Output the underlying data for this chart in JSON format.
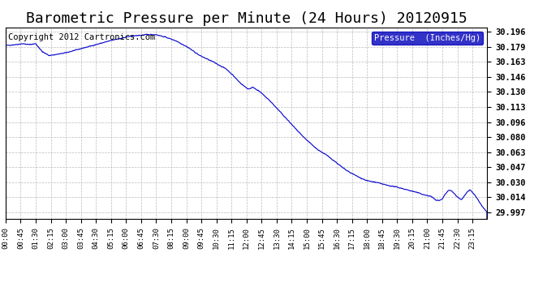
{
  "title": "Barometric Pressure per Minute (24 Hours) 20120915",
  "copyright": "Copyright 2012 Cartronics.com",
  "legend_label": "Pressure  (Inches/Hg)",
  "yticks": [
    29.997,
    30.014,
    30.03,
    30.047,
    30.063,
    30.08,
    30.096,
    30.113,
    30.13,
    30.146,
    30.163,
    30.179,
    30.196
  ],
  "ytick_labels": [
    "29.997",
    "30.014",
    "30.030",
    "30.047",
    "30.063",
    "30.080",
    "30.096",
    "30.113",
    "30.130",
    "30.146",
    "30.163",
    "30.179",
    "30.196"
  ],
  "ylim": [
    29.99,
    30.201
  ],
  "xtick_labels": [
    "00:00",
    "00:45",
    "01:30",
    "02:15",
    "03:00",
    "03:45",
    "04:30",
    "05:15",
    "06:00",
    "06:45",
    "07:30",
    "08:15",
    "09:00",
    "09:45",
    "10:30",
    "11:15",
    "12:00",
    "12:45",
    "13:30",
    "14:15",
    "15:00",
    "15:45",
    "16:30",
    "17:15",
    "18:00",
    "18:45",
    "19:30",
    "20:15",
    "21:00",
    "21:45",
    "22:30",
    "23:15"
  ],
  "line_color": "#0000CC",
  "background_color": "#ffffff",
  "grid_color": "#aaaaaa",
  "title_fontsize": 13,
  "copyright_fontsize": 7.5,
  "legend_bg": "#0000BB",
  "keypoints": [
    [
      0,
      30.181
    ],
    [
      30,
      30.182
    ],
    [
      50,
      30.183
    ],
    [
      70,
      30.182
    ],
    [
      90,
      30.183
    ],
    [
      110,
      30.174
    ],
    [
      130,
      30.17
    ],
    [
      150,
      30.171
    ],
    [
      180,
      30.173
    ],
    [
      220,
      30.177
    ],
    [
      270,
      30.182
    ],
    [
      320,
      30.187
    ],
    [
      370,
      30.191
    ],
    [
      420,
      30.193
    ],
    [
      450,
      30.193
    ],
    [
      460,
      30.192
    ],
    [
      480,
      30.19
    ],
    [
      510,
      30.186
    ],
    [
      545,
      30.179
    ],
    [
      580,
      30.17
    ],
    [
      620,
      30.163
    ],
    [
      660,
      30.155
    ],
    [
      680,
      30.148
    ],
    [
      695,
      30.142
    ],
    [
      710,
      30.137
    ],
    [
      725,
      30.133
    ],
    [
      740,
      30.135
    ],
    [
      760,
      30.13
    ],
    [
      790,
      30.12
    ],
    [
      820,
      30.108
    ],
    [
      850,
      30.096
    ],
    [
      890,
      30.08
    ],
    [
      930,
      30.067
    ],
    [
      960,
      30.06
    ],
    [
      985,
      30.053
    ],
    [
      1005,
      30.047
    ],
    [
      1020,
      30.043
    ],
    [
      1035,
      30.04
    ],
    [
      1055,
      30.036
    ],
    [
      1080,
      30.032
    ],
    [
      1110,
      30.03
    ],
    [
      1140,
      30.027
    ],
    [
      1170,
      30.025
    ],
    [
      1200,
      30.022
    ],
    [
      1230,
      30.019
    ],
    [
      1255,
      30.016
    ],
    [
      1270,
      30.015
    ],
    [
      1285,
      30.011
    ],
    [
      1295,
      30.01
    ],
    [
      1305,
      30.012
    ],
    [
      1315,
      30.018
    ],
    [
      1325,
      30.022
    ],
    [
      1335,
      30.02
    ],
    [
      1345,
      30.016
    ],
    [
      1355,
      30.013
    ],
    [
      1362,
      30.011
    ],
    [
      1370,
      30.015
    ],
    [
      1378,
      30.019
    ],
    [
      1388,
      30.022
    ],
    [
      1398,
      30.018
    ],
    [
      1408,
      30.013
    ],
    [
      1418,
      30.007
    ],
    [
      1428,
      30.002
    ],
    [
      1439,
      29.997
    ]
  ]
}
